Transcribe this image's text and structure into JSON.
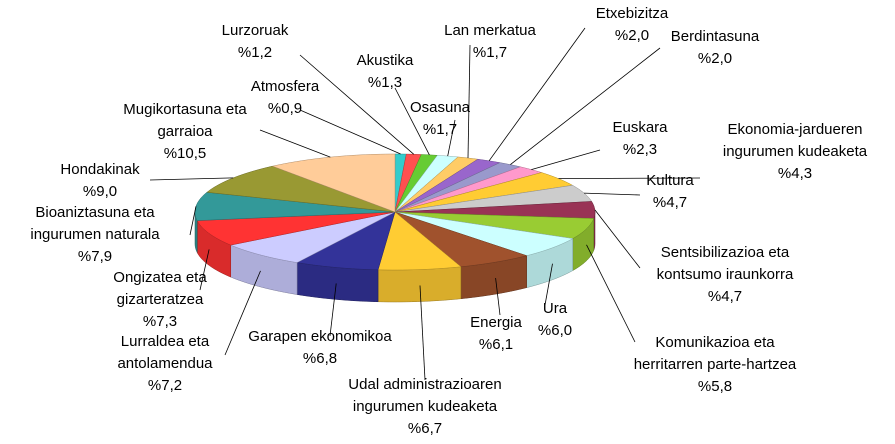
{
  "chart_data": {
    "type": "pie3d",
    "categories": [
      "Atmosfera",
      "Lurzoruak",
      "Akustika",
      "Osasuna",
      "Lan merkatua",
      "Etxebizitza",
      "Berdintasuna",
      "Euskara",
      "Ekonomia-jardueren ingurumen kudeaketa",
      "Kultura",
      "Sentsibilizazioa eta kontsumo iraunkorra",
      "Komunikazioa eta herritarren parte-hartzea",
      "Ura",
      "Energia",
      "Udal administrazioaren ingurumen kudeaketa",
      "Garapen ekonomikoa",
      "Lurraldea eta antolamendua",
      "Ongizatea eta gizarteratzea",
      "Bioaniztasuna eta ingurumen naturala",
      "Hondakinak",
      "Mugikortasuna eta garraioa"
    ],
    "values": [
      0.9,
      1.2,
      1.3,
      1.7,
      1.7,
      2.0,
      2.0,
      2.3,
      4.3,
      4.7,
      4.7,
      5.8,
      6.0,
      6.1,
      6.7,
      6.8,
      7.2,
      7.3,
      7.9,
      9.0,
      10.5
    ],
    "value_labels": [
      "%0,9",
      "%1,2",
      "%1,3",
      "%1,7",
      "%1,7",
      "%2,0",
      "%2,0",
      "%2,3",
      "%4,3",
      "%4,7",
      "%4,7",
      "%5,8",
      "%6,0",
      "%6,1",
      "%6,7",
      "%6,8",
      "%7,2",
      "%7,3",
      "%7,9",
      "%9,0",
      "%10,5"
    ],
    "colors": [
      "#33cccc",
      "#ff5050",
      "#66cc33",
      "#ccffff",
      "#ffcc66",
      "#9966cc",
      "#9999cc",
      "#ff99cc",
      "#ffcc33",
      "#cccccc",
      "#993355",
      "#99cc33",
      "#ccffff",
      "#a0522d",
      "#ffcc33",
      "#333399",
      "#ccccff",
      "#ff3333",
      "#339999",
      "#999933",
      "#ffcc99"
    ]
  }
}
